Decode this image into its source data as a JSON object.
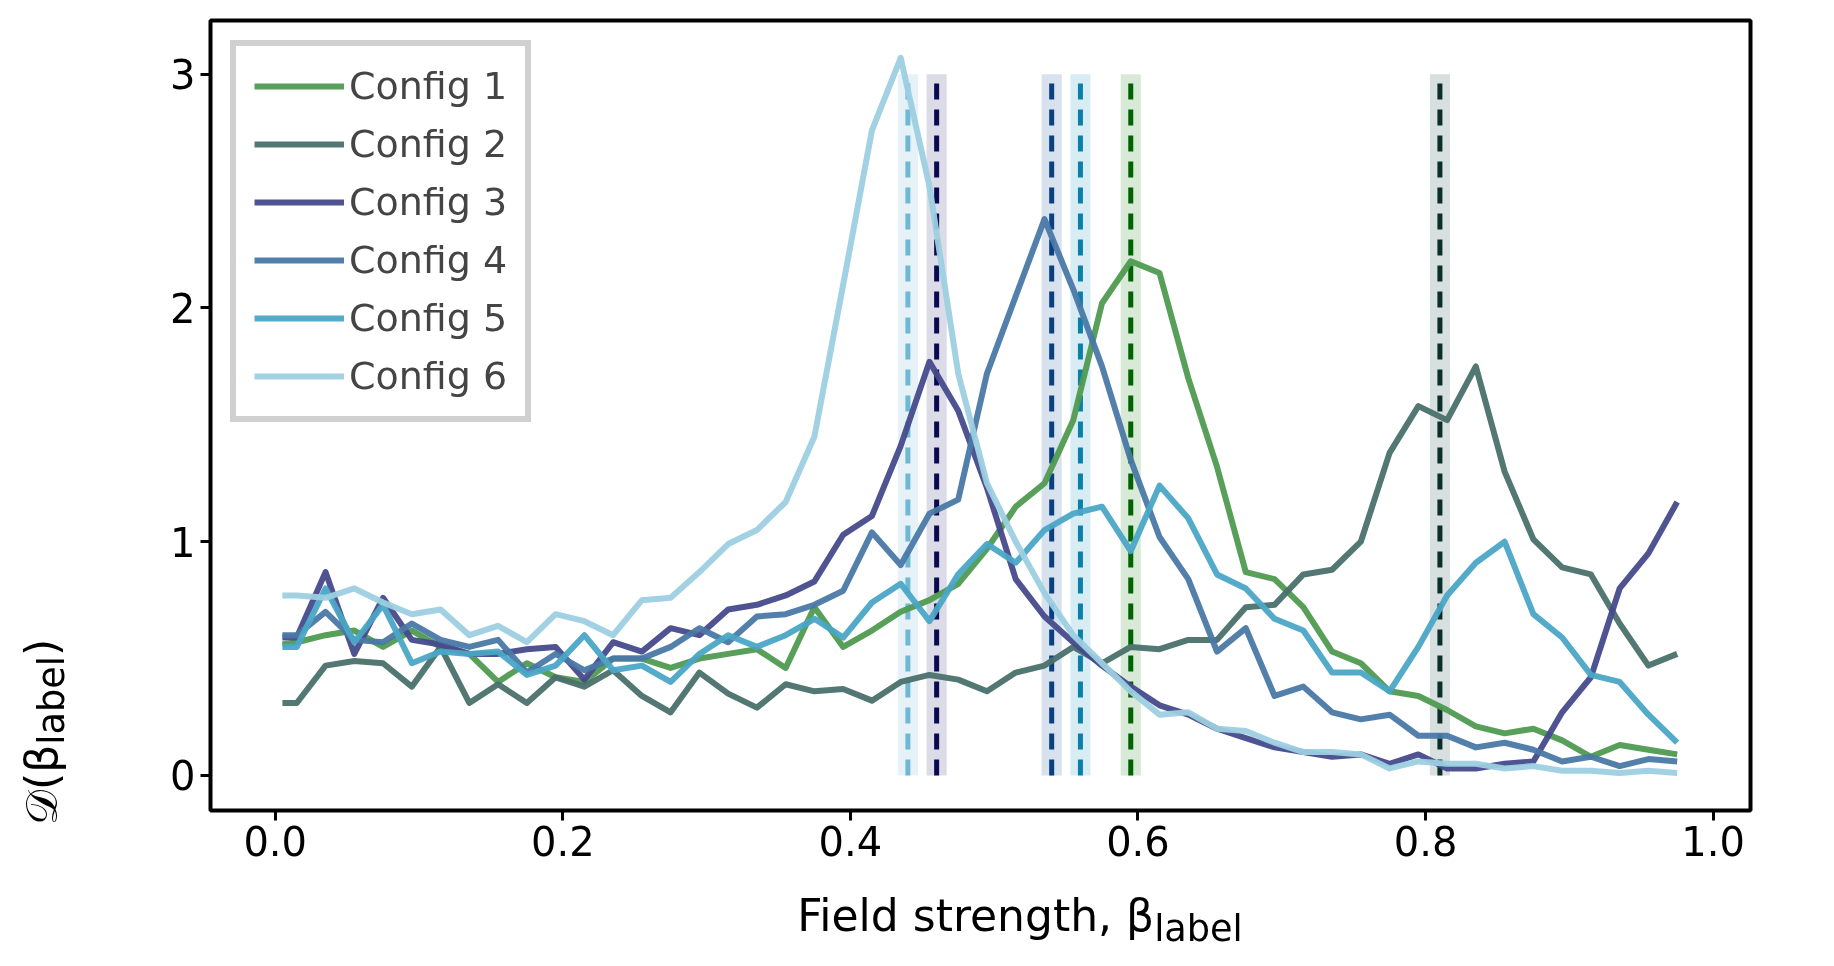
{
  "chart_data": {
    "type": "line",
    "xlabel": "Field strength, β$_{label}$",
    "ylabel": "𝒟(β$_{label}$)",
    "x": [
      0.005,
      0.015,
      0.035,
      0.055,
      0.075,
      0.095,
      0.115,
      0.135,
      0.155,
      0.175,
      0.195,
      0.215,
      0.235,
      0.255,
      0.275,
      0.295,
      0.315,
      0.335,
      0.355,
      0.375,
      0.395,
      0.415,
      0.435,
      0.455,
      0.475,
      0.495,
      0.515,
      0.535,
      0.555,
      0.575,
      0.595,
      0.615,
      0.635,
      0.655,
      0.675,
      0.695,
      0.715,
      0.735,
      0.755,
      0.775,
      0.795,
      0.815,
      0.835,
      0.855,
      0.875,
      0.895,
      0.915,
      0.935,
      0.955,
      0.975
    ],
    "series": [
      {
        "name": "Config 1",
        "color": "#4f9a50",
        "values": [
          0.56,
          0.57,
          0.6,
          0.62,
          0.55,
          0.62,
          0.55,
          0.52,
          0.4,
          0.48,
          0.42,
          0.4,
          0.5,
          0.5,
          0.46,
          0.5,
          0.52,
          0.54,
          0.46,
          0.72,
          0.55,
          0.62,
          0.7,
          0.75,
          0.82,
          0.97,
          1.15,
          1.25,
          1.52,
          2.02,
          2.2,
          2.15,
          1.7,
          1.32,
          0.87,
          0.84,
          0.72,
          0.53,
          0.48,
          0.36,
          0.34,
          0.28,
          0.21,
          0.18,
          0.2,
          0.15,
          0.08,
          0.13,
          0.11,
          0.09
        ]
      },
      {
        "name": "Config 2",
        "color": "#4a706c",
        "values": [
          0.31,
          0.31,
          0.47,
          0.49,
          0.48,
          0.38,
          0.55,
          0.31,
          0.39,
          0.31,
          0.42,
          0.38,
          0.45,
          0.34,
          0.27,
          0.44,
          0.35,
          0.29,
          0.39,
          0.36,
          0.37,
          0.32,
          0.4,
          0.43,
          0.41,
          0.36,
          0.44,
          0.47,
          0.55,
          0.48,
          0.55,
          0.54,
          0.58,
          0.58,
          0.72,
          0.73,
          0.86,
          0.88,
          1.0,
          1.38,
          1.58,
          1.52,
          1.75,
          1.3,
          1.01,
          0.89,
          0.86,
          0.65,
          0.47,
          0.52
        ]
      },
      {
        "name": "Config 3",
        "color": "#464a8c",
        "values": [
          0.59,
          0.59,
          0.87,
          0.52,
          0.76,
          0.58,
          0.56,
          0.52,
          0.52,
          0.54,
          0.55,
          0.41,
          0.57,
          0.53,
          0.63,
          0.6,
          0.71,
          0.73,
          0.77,
          0.83,
          1.03,
          1.11,
          1.41,
          1.77,
          1.56,
          1.23,
          0.84,
          0.68,
          0.57,
          0.47,
          0.38,
          0.3,
          0.26,
          0.2,
          0.16,
          0.12,
          0.1,
          0.08,
          0.09,
          0.05,
          0.09,
          0.03,
          0.03,
          0.05,
          0.06,
          0.27,
          0.42,
          0.8,
          0.95,
          1.17
        ]
      },
      {
        "name": "Config 4",
        "color": "#4a78a6",
        "values": [
          0.6,
          0.6,
          0.7,
          0.58,
          0.57,
          0.65,
          0.58,
          0.55,
          0.58,
          0.44,
          0.52,
          0.45,
          0.5,
          0.5,
          0.55,
          0.63,
          0.57,
          0.68,
          0.69,
          0.73,
          0.79,
          1.04,
          0.9,
          1.12,
          1.18,
          1.72,
          2.05,
          2.38,
          2.08,
          1.75,
          1.35,
          1.02,
          0.84,
          0.53,
          0.63,
          0.34,
          0.38,
          0.27,
          0.24,
          0.26,
          0.17,
          0.17,
          0.12,
          0.14,
          0.11,
          0.06,
          0.08,
          0.04,
          0.07,
          0.06
        ]
      },
      {
        "name": "Config 5",
        "color": "#4aa6c6",
        "values": [
          0.55,
          0.55,
          0.8,
          0.57,
          0.73,
          0.48,
          0.53,
          0.52,
          0.53,
          0.43,
          0.47,
          0.6,
          0.45,
          0.47,
          0.4,
          0.52,
          0.6,
          0.55,
          0.6,
          0.67,
          0.59,
          0.74,
          0.82,
          0.66,
          0.86,
          0.99,
          0.91,
          1.05,
          1.12,
          1.15,
          0.96,
          1.24,
          1.1,
          0.86,
          0.8,
          0.67,
          0.62,
          0.44,
          0.44,
          0.36,
          0.55,
          0.77,
          0.91,
          1.0,
          0.69,
          0.59,
          0.43,
          0.4,
          0.26,
          0.14
        ]
      },
      {
        "name": "Config 6",
        "color": "#9ccfe0",
        "values": [
          0.77,
          0.77,
          0.76,
          0.8,
          0.74,
          0.69,
          0.71,
          0.6,
          0.64,
          0.57,
          0.69,
          0.66,
          0.6,
          0.75,
          0.76,
          0.87,
          0.99,
          1.05,
          1.17,
          1.45,
          2.1,
          2.76,
          3.07,
          2.52,
          1.72,
          1.25,
          1.0,
          0.78,
          0.6,
          0.48,
          0.36,
          0.26,
          0.27,
          0.2,
          0.19,
          0.14,
          0.1,
          0.1,
          0.09,
          0.03,
          0.06,
          0.05,
          0.05,
          0.03,
          0.04,
          0.02,
          0.02,
          0.01,
          0.02,
          0.01
        ]
      }
    ],
    "ref_lines": [
      {
        "axis": "x",
        "value": 0.44,
        "color": "#6fb8d3",
        "line_style": "dashed"
      },
      {
        "axis": "x",
        "value": 0.46,
        "color": "#0a0a50",
        "line_style": "dashed"
      },
      {
        "axis": "x",
        "value": 0.54,
        "color": "#0a3f80",
        "line_style": "dashed"
      },
      {
        "axis": "x",
        "value": 0.56,
        "color": "#0a80a8",
        "line_style": "dashed"
      },
      {
        "axis": "x",
        "value": 0.595,
        "color": "#006400",
        "line_style": "dashed"
      },
      {
        "axis": "x",
        "value": 0.81,
        "color": "#0a2f2a",
        "line_style": "dashed"
      }
    ],
    "bands": [
      {
        "axis": "x",
        "from": 0.433,
        "to": 0.447,
        "color": "#e6f2f7"
      },
      {
        "axis": "x",
        "from": 0.453,
        "to": 0.467,
        "color": "#dcdce8"
      },
      {
        "axis": "x",
        "from": 0.533,
        "to": 0.547,
        "color": "#d8e2ee"
      },
      {
        "axis": "x",
        "from": 0.553,
        "to": 0.567,
        "color": "#d8edf3"
      },
      {
        "axis": "x",
        "from": 0.588,
        "to": 0.602,
        "color": "#d8e9d8"
      },
      {
        "axis": "x",
        "from": 0.803,
        "to": 0.817,
        "color": "#d8e0df"
      }
    ],
    "xlim": [
      -0.045,
      1.026
    ],
    "ylim": [
      -0.15,
      3.23
    ],
    "xticks": [
      {
        "value": 0,
        "label": "0.0"
      },
      {
        "value": 0.2,
        "label": "0.2"
      },
      {
        "value": 0.4,
        "label": "0.4"
      },
      {
        "value": 0.6,
        "label": "0.6"
      },
      {
        "value": 0.8,
        "label": "0.8"
      },
      {
        "value": 1,
        "label": "1.0"
      }
    ],
    "yticks": [
      0,
      1,
      2,
      3
    ],
    "grid": false,
    "legend": "top left",
    "marker": "none",
    "line_style": "solid"
  }
}
